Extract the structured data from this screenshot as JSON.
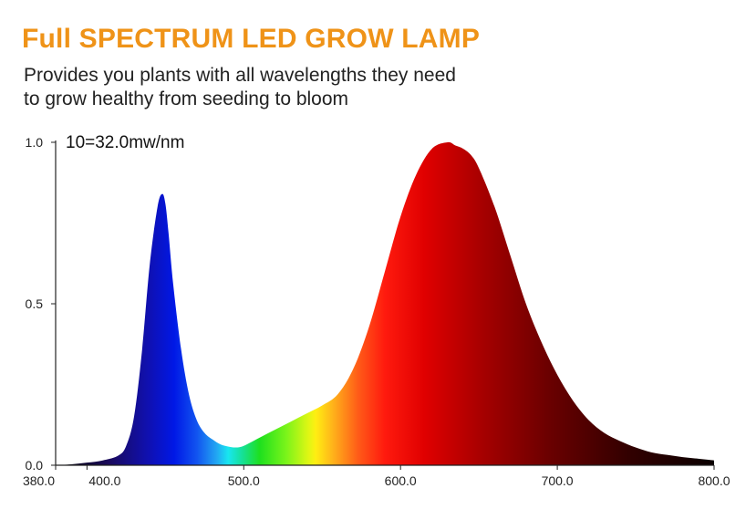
{
  "header": {
    "title": "Full SPECTRUM LED GROW LAMP",
    "subtitle_line1": "Provides you plants with all wavelengths they need",
    "subtitle_line2": "to grow healthy from seeding to bloom"
  },
  "colors": {
    "title": "#ef9318"
  },
  "chart_data": {
    "type": "area",
    "title": "Full SPECTRUM LED GROW LAMP",
    "xlabel": "",
    "ylabel": "",
    "annotation": "10=32.0mw/nm",
    "xlim": [
      380,
      800
    ],
    "ylim": [
      0,
      1.0
    ],
    "x_ticks": [
      380,
      400,
      500,
      600,
      700,
      800
    ],
    "x_tick_labels": [
      "380.0",
      "400.0",
      "500.0",
      "600.0",
      "700.0",
      "800.0"
    ],
    "y_ticks": [
      0,
      0.5,
      1.0
    ],
    "y_tick_labels": [
      "0.0",
      "0.5",
      "1.0"
    ],
    "grid": false,
    "series": [
      {
        "x": [
          380,
          390,
          400,
          410,
          420,
          425,
          430,
          435,
          440,
          445,
          448,
          450,
          452,
          455,
          460,
          465,
          470,
          475,
          480,
          485,
          490,
          495,
          500,
          510,
          520,
          530,
          540,
          550,
          560,
          570,
          580,
          590,
          600,
          610,
          620,
          630,
          635,
          640,
          645,
          650,
          660,
          670,
          680,
          690,
          700,
          710,
          720,
          730,
          740,
          750,
          760,
          770,
          780,
          790,
          800
        ],
        "y": [
          0.0,
          0.003,
          0.008,
          0.015,
          0.03,
          0.06,
          0.15,
          0.35,
          0.62,
          0.8,
          0.84,
          0.81,
          0.72,
          0.56,
          0.36,
          0.22,
          0.14,
          0.1,
          0.08,
          0.065,
          0.058,
          0.055,
          0.06,
          0.085,
          0.11,
          0.135,
          0.16,
          0.185,
          0.22,
          0.3,
          0.43,
          0.6,
          0.77,
          0.9,
          0.98,
          1.0,
          0.99,
          0.98,
          0.96,
          0.92,
          0.8,
          0.65,
          0.5,
          0.38,
          0.28,
          0.2,
          0.14,
          0.1,
          0.075,
          0.055,
          0.04,
          0.032,
          0.025,
          0.02,
          0.015
        ]
      }
    ]
  }
}
